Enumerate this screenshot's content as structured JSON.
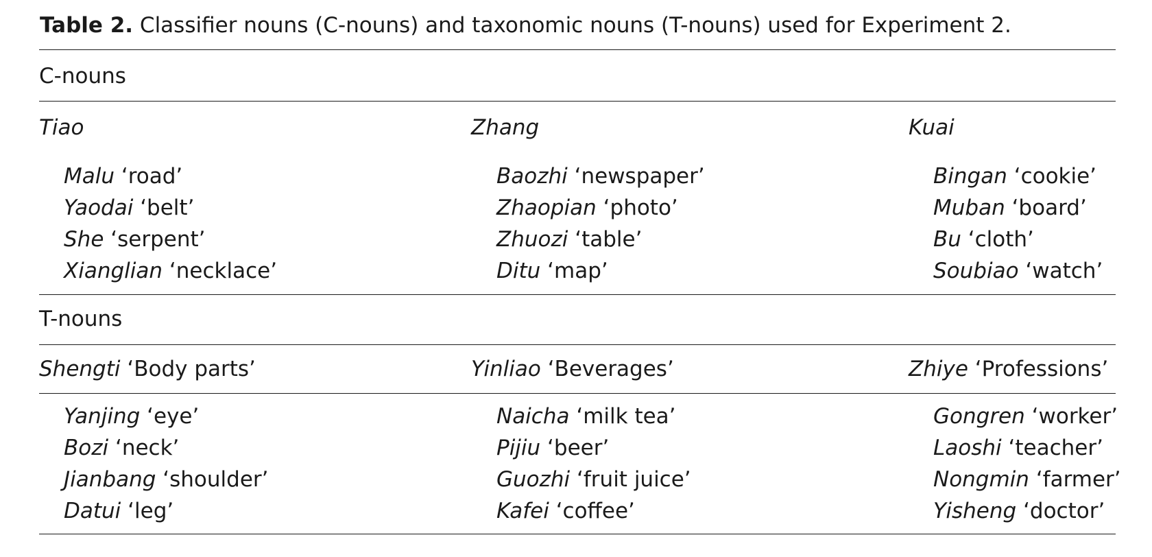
{
  "caption": {
    "label": "Table 2.",
    "text": "Classifier nouns (C-nouns) and taxonomic nouns (T-nouns) used for Experiment 2."
  },
  "sections": [
    {
      "title": "C-nouns",
      "columns": [
        {
          "heading_word": "Tiao",
          "heading_gloss": "",
          "items": [
            {
              "word": "Malu",
              "gloss": "‘road’"
            },
            {
              "word": "Yaodai",
              "gloss": "‘belt’"
            },
            {
              "word": "She",
              "gloss": "‘serpent’"
            },
            {
              "word": "Xianglian",
              "gloss": "‘necklace’"
            }
          ]
        },
        {
          "heading_word": "Zhang",
          "heading_gloss": "",
          "items": [
            {
              "word": "Baozhi",
              "gloss": "‘newspaper’"
            },
            {
              "word": "Zhaopian",
              "gloss": "‘photo’"
            },
            {
              "word": "Zhuozi",
              "gloss": "‘table’"
            },
            {
              "word": "Ditu",
              "gloss": "‘map’"
            }
          ]
        },
        {
          "heading_word": "Kuai",
          "heading_gloss": "",
          "items": [
            {
              "word": "Bingan",
              "gloss": "‘cookie’"
            },
            {
              "word": "Muban",
              "gloss": "‘board’"
            },
            {
              "word": "Bu",
              "gloss": "‘cloth’"
            },
            {
              "word": "Soubiao",
              "gloss": "‘watch’"
            }
          ]
        }
      ]
    },
    {
      "title": "T-nouns",
      "columns": [
        {
          "heading_word": "Shengti",
          "heading_gloss": "‘Body parts’",
          "items": [
            {
              "word": "Yanjing",
              "gloss": "‘eye’"
            },
            {
              "word": "Bozi",
              "gloss": "‘neck’"
            },
            {
              "word": "Jianbang",
              "gloss": "‘shoulder’"
            },
            {
              "word": "Datui",
              "gloss": "‘leg’"
            }
          ]
        },
        {
          "heading_word": "Yinliao",
          "heading_gloss": "‘Beverages’",
          "items": [
            {
              "word": "Naicha",
              "gloss": "‘milk tea’"
            },
            {
              "word": "Pijiu",
              "gloss": "‘beer’"
            },
            {
              "word": "Guozhi",
              "gloss": "‘fruit juice’"
            },
            {
              "word": "Kafei",
              "gloss": "‘coffee’"
            }
          ]
        },
        {
          "heading_word": "Zhiye",
          "heading_gloss": "‘Professions’",
          "items": [
            {
              "word": "Gongren",
              "gloss": "‘worker’"
            },
            {
              "word": "Laoshi",
              "gloss": "‘teacher’"
            },
            {
              "word": "Nongmin",
              "gloss": "‘farmer’"
            },
            {
              "word": "Yisheng",
              "gloss": "‘doctor’"
            }
          ]
        }
      ]
    }
  ]
}
